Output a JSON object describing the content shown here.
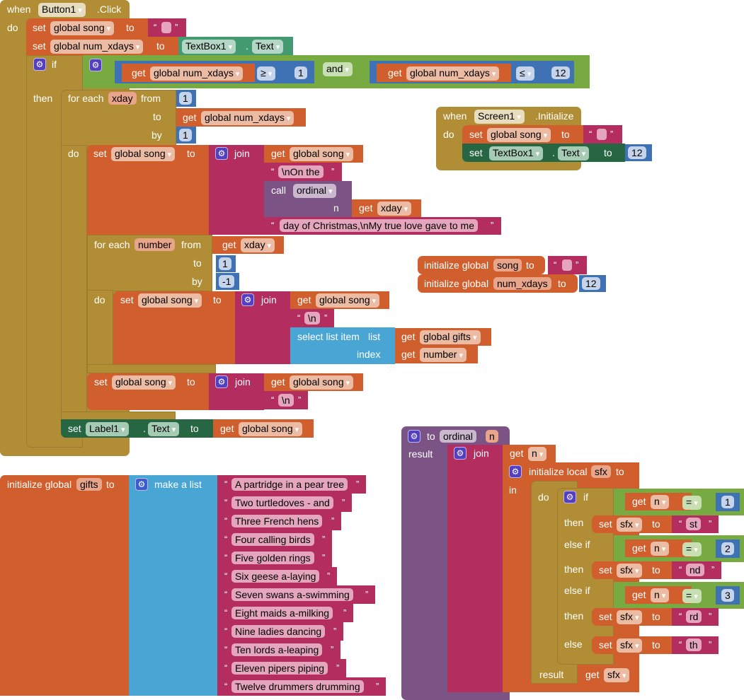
{
  "button_click": {
    "when": "when",
    "component": "Button1",
    "event": ".Click",
    "do": "do",
    "set1": {
      "set": "set",
      "var": "global song",
      "to": "to"
    },
    "set2": {
      "set": "set",
      "var": "global num_xdays",
      "to": "to",
      "component": "TextBox1",
      "dot": ".",
      "prop": "Text"
    },
    "if": {
      "if": "if",
      "then": "then",
      "get1": {
        "get": "get",
        "var": "global num_xdays"
      },
      "op1": "≥",
      "num1": "1",
      "and": "and",
      "get2": {
        "get": "get",
        "var": "global num_xdays"
      },
      "op2": "≤",
      "num2": "12"
    },
    "for1": {
      "for_each": "for each",
      "var": "xday",
      "from": "from",
      "to": "to",
      "by": "by",
      "do": "do",
      "from_val": "1",
      "to_get": "get",
      "to_var": "global num_xdays",
      "by_val": "1"
    },
    "set3": {
      "set": "set",
      "var": "global song",
      "to": "to",
      "join": "join",
      "get": "get",
      "get_var": "global song",
      "str1": "\\nOn the",
      "call": "call",
      "proc": "ordinal",
      "n": "n",
      "n_get": "get",
      "n_var": "xday",
      "str2": "day of Christmas,\\nMy true love gave to me"
    },
    "for2": {
      "for_each": "for each",
      "var": "number",
      "from": "from",
      "to": "to",
      "by": "by",
      "do": "do",
      "from_get": "get",
      "from_var": "xday",
      "to_val": "1",
      "by_val": "-1"
    },
    "set4": {
      "set": "set",
      "var": "global song",
      "to": "to",
      "join": "join",
      "get": "get",
      "get_var": "global song",
      "str1": "\\n",
      "select": "select list item",
      "list": "list",
      "index": "index",
      "list_get": "get",
      "list_var": "global gifts",
      "index_get": "get",
      "index_var": "number"
    },
    "set5": {
      "set": "set",
      "var": "global song",
      "to": "to",
      "join": "join",
      "get": "get",
      "get_var": "global song",
      "str1": "\\n"
    },
    "set6": {
      "set": "set",
      "component": "Label1",
      "dot": ".",
      "prop": "Text",
      "to": "to",
      "get": "get",
      "get_var": "global song"
    }
  },
  "screen_init": {
    "when": "when",
    "component": "Screen1",
    "event": ".Initialize",
    "do": "do",
    "set1": {
      "set": "set",
      "var": "global song",
      "to": "to"
    },
    "set2": {
      "set": "set",
      "component": "TextBox1",
      "dot": ".",
      "prop": "Text",
      "to": "to",
      "value": "12"
    }
  },
  "init_song": {
    "label": "initialize global",
    "name": "song",
    "to": "to"
  },
  "init_num": {
    "label": "initialize global",
    "name": "num_xdays",
    "to": "to",
    "value": "12"
  },
  "gifts": {
    "label": "initialize global",
    "name": "gifts",
    "to": "to",
    "make_list": "make a list",
    "items": [
      "A partridge in a pear tree",
      "Two turtledoves - and",
      "Three French hens",
      "Four calling birds",
      "Five golden rings",
      "Six geese a-laying",
      "Seven swans a-swimming",
      "Eight maids a-milking",
      "Nine ladies dancing",
      "Ten lords a-leaping",
      "Eleven pipers piping",
      "Twelve drummers drumming"
    ]
  },
  "ordinal": {
    "to": "to",
    "name": "ordinal",
    "param": "n",
    "result": "result",
    "join": "join",
    "get_n": "get",
    "n_var": "n",
    "init_local": "initialize local",
    "local_name": "sfx",
    "local_to": "to",
    "in": "in",
    "do": "do",
    "if": "if",
    "else_if": "else if",
    "then": "then",
    "else": "else",
    "conds": [
      {
        "get": "get",
        "var": "n",
        "op": "=",
        "val": "1"
      },
      {
        "get": "get",
        "var": "n",
        "op": "=",
        "val": "2"
      },
      {
        "get": "get",
        "var": "n",
        "op": "=",
        "val": "3"
      }
    ],
    "sets": [
      {
        "set": "set",
        "var": "sfx",
        "to": "to",
        "val": "st"
      },
      {
        "set": "set",
        "var": "sfx",
        "to": "to",
        "val": "nd"
      },
      {
        "set": "set",
        "var": "sfx",
        "to": "to",
        "val": "rd"
      },
      {
        "set": "set",
        "var": "sfx",
        "to": "to",
        "val": "th"
      }
    ],
    "result2": "result",
    "res_get": "get",
    "res_var": "sfx"
  },
  "quotes": {
    "open": "“",
    "close": "”"
  }
}
